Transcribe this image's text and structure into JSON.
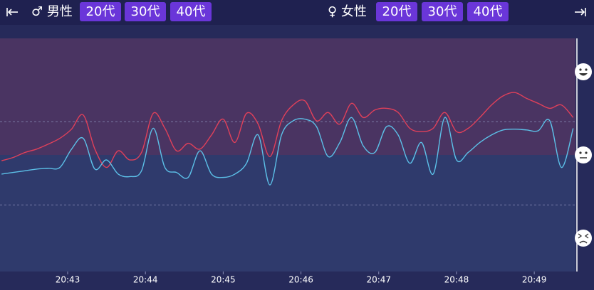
{
  "header": {
    "male": {
      "label": "♂ 男性",
      "ages": [
        "20代",
        "30代",
        "40代"
      ]
    },
    "female": {
      "label": "♀ 女性",
      "ages": [
        "20代",
        "30代",
        "40代"
      ]
    }
  },
  "chart_data": {
    "type": "line",
    "x": [
      1242.15,
      1242.3,
      1242.45,
      1242.6,
      1242.75,
      1242.9,
      1243.05,
      1243.2,
      1243.35,
      1243.5,
      1243.65,
      1243.8,
      1243.95,
      1244.1,
      1244.25,
      1244.4,
      1244.55,
      1244.7,
      1244.85,
      1245.0,
      1245.15,
      1245.3,
      1245.45,
      1245.6,
      1245.75,
      1245.9,
      1246.05,
      1246.2,
      1246.35,
      1246.5,
      1246.65,
      1246.8,
      1246.95,
      1247.1,
      1247.25,
      1247.4,
      1247.55,
      1247.7,
      1247.85,
      1248.0,
      1248.15,
      1248.3,
      1248.45,
      1248.6,
      1248.75,
      1248.9,
      1249.05,
      1249.2,
      1249.35,
      1249.5
    ],
    "series": [
      {
        "color": "#e0405a",
        "values": [
          -0.07,
          -0.03,
          0.03,
          0.07,
          0.13,
          0.2,
          0.31,
          0.48,
          0.07,
          -0.15,
          0.05,
          -0.06,
          0.03,
          0.5,
          0.32,
          0.05,
          0.14,
          0.07,
          0.24,
          0.43,
          0.15,
          0.5,
          0.37,
          -0.02,
          0.41,
          0.6,
          0.65,
          0.41,
          0.51,
          0.37,
          0.62,
          0.45,
          0.54,
          0.56,
          0.51,
          0.32,
          0.28,
          0.32,
          0.51,
          0.28,
          0.32,
          0.45,
          0.6,
          0.71,
          0.75,
          0.68,
          0.62,
          0.56,
          0.6,
          0.45
        ]
      },
      {
        "color": "#5cc0e8",
        "values": [
          -0.23,
          -0.21,
          -0.19,
          -0.17,
          -0.16,
          -0.15,
          0.07,
          0.2,
          -0.17,
          -0.06,
          -0.23,
          -0.26,
          -0.19,
          0.32,
          -0.15,
          -0.21,
          -0.27,
          0.05,
          -0.23,
          -0.27,
          -0.23,
          -0.1,
          0.24,
          -0.36,
          0.24,
          0.41,
          0.43,
          0.34,
          -0.02,
          0.15,
          0.45,
          0.11,
          0.03,
          0.34,
          0.24,
          -0.1,
          0.15,
          -0.23,
          0.45,
          -0.06,
          0.03,
          0.15,
          0.24,
          0.3,
          0.31,
          0.3,
          0.29,
          0.41,
          -0.15,
          0.32
        ]
      }
    ],
    "xlim": [
      1242.13,
      1249.53
    ],
    "xticks": [
      {
        "value": 1243,
        "label": "20:43"
      },
      {
        "value": 1244,
        "label": "20:44"
      },
      {
        "value": 1245,
        "label": "20:45"
      },
      {
        "value": 1246,
        "label": "20:46"
      },
      {
        "value": 1247,
        "label": "20:47"
      },
      {
        "value": 1248,
        "label": "20:48"
      },
      {
        "value": 1249,
        "label": "20:49"
      }
    ],
    "ylim": [
      -1.4,
      1.4
    ],
    "grid_lines": [
      0.4,
      -0.6
    ],
    "positive_color": "#4a3462",
    "negative_color": "#2f3a6c"
  }
}
